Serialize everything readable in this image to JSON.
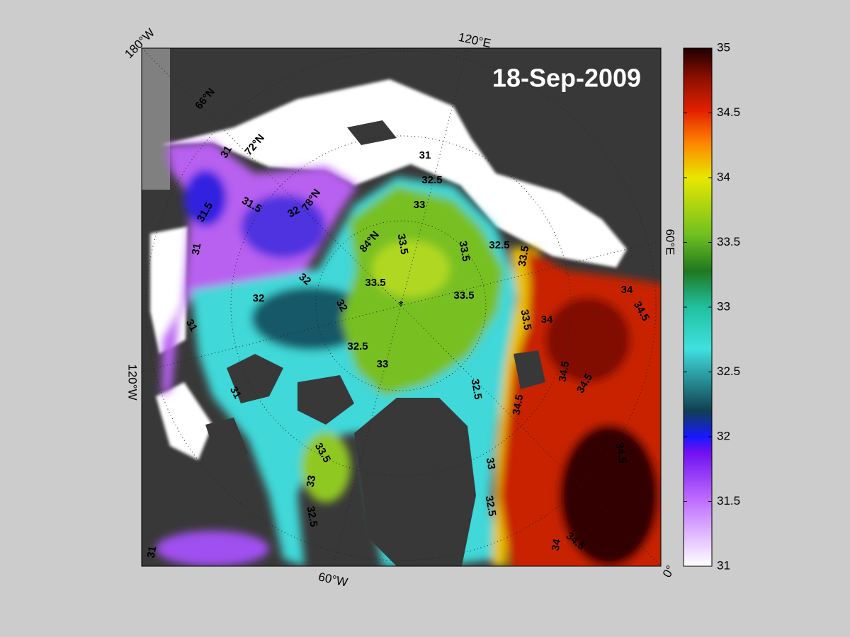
{
  "map": {
    "date": "18-Sep-2009",
    "graticule_labels": [
      "180°W",
      "120°E",
      "60°E",
      "0°",
      "60°W",
      "120°W",
      "66°N",
      "72°N",
      "78°N",
      "84°N"
    ],
    "contour_labels": [
      31,
      31.5,
      31.5,
      32,
      32,
      32,
      32,
      32.5,
      33,
      33.5,
      33.5,
      33,
      32.5,
      31,
      33.5,
      33.5,
      32.5,
      33.5,
      34,
      34.5,
      34,
      33.5,
      34.5,
      34.5,
      34.5,
      34.5,
      34.5,
      34,
      33,
      32.5,
      33.5,
      33,
      32.5,
      31,
      31,
      31,
      32.5,
      31
    ],
    "colorbar": {
      "lim": [
        31,
        35
      ],
      "ticks": [
        31,
        31.5,
        32,
        32.5,
        33,
        33.5,
        34,
        34.5,
        35
      ]
    }
  }
}
